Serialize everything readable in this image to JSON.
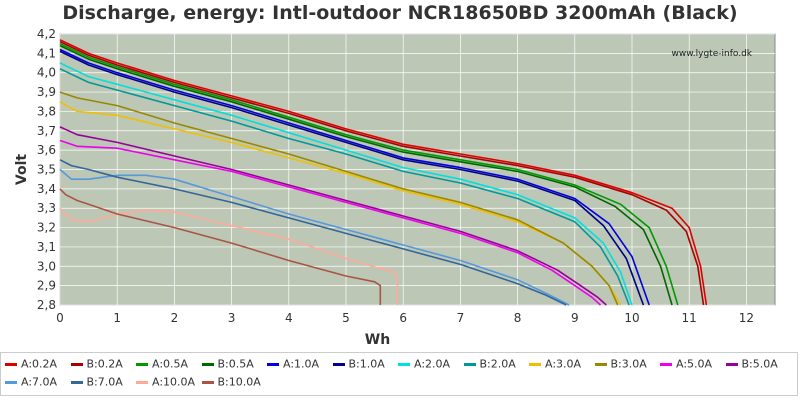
{
  "chart_data": {
    "type": "line",
    "title": "Discharge, energy: Intl-outdoor NCR18650BD 3200mAh (Black)",
    "xlabel": "Wh",
    "ylabel": "Volt",
    "xlim": [
      0,
      12.5
    ],
    "ylim": [
      2.8,
      4.2
    ],
    "xticks": [
      "0",
      "1",
      "2",
      "3",
      "4",
      "5",
      "6",
      "7",
      "8",
      "9",
      "10",
      "11",
      "12"
    ],
    "yticks": [
      "2,8",
      "2,9",
      "3,0",
      "3,1",
      "3,2",
      "3,3",
      "3,4",
      "3,5",
      "3,6",
      "3,7",
      "3,8",
      "3,9",
      "4,0",
      "4,1",
      "4,2"
    ],
    "watermark": "www.lygte-info.dk",
    "grid": true,
    "legend_placement": "bottom",
    "plot_background": "#bcc7b5",
    "series": [
      {
        "name": "A:0.2A",
        "color": "#dd0000",
        "x": [
          0,
          0.5,
          1,
          2,
          3,
          4,
          5,
          6,
          7,
          8,
          9,
          10,
          10.7,
          11.0,
          11.2,
          11.3
        ],
        "y": [
          4.17,
          4.1,
          4.05,
          3.96,
          3.88,
          3.8,
          3.71,
          3.63,
          3.58,
          3.53,
          3.47,
          3.38,
          3.3,
          3.2,
          3.0,
          2.8
        ]
      },
      {
        "name": "B:0.2A",
        "color": "#aa0000",
        "x": [
          0,
          0.5,
          1,
          2,
          3,
          4,
          5,
          6,
          7,
          8,
          9,
          10,
          10.6,
          10.95,
          11.15,
          11.25
        ],
        "y": [
          4.16,
          4.09,
          4.04,
          3.95,
          3.87,
          3.79,
          3.7,
          3.62,
          3.57,
          3.52,
          3.46,
          3.37,
          3.29,
          3.18,
          3.0,
          2.8
        ]
      },
      {
        "name": "A:0.5A",
        "color": "#009900",
        "x": [
          0,
          0.5,
          1,
          2,
          3,
          4,
          5,
          6,
          7,
          8,
          9,
          9.8,
          10.3,
          10.6,
          10.8
        ],
        "y": [
          4.15,
          4.08,
          4.03,
          3.94,
          3.86,
          3.77,
          3.68,
          3.6,
          3.55,
          3.5,
          3.42,
          3.32,
          3.2,
          3.0,
          2.8
        ]
      },
      {
        "name": "B:0.5A",
        "color": "#006600",
        "x": [
          0,
          0.5,
          1,
          2,
          3,
          4,
          5,
          6,
          7,
          8,
          9,
          9.7,
          10.2,
          10.5,
          10.7
        ],
        "y": [
          4.14,
          4.07,
          4.02,
          3.93,
          3.85,
          3.76,
          3.67,
          3.59,
          3.54,
          3.49,
          3.41,
          3.31,
          3.19,
          3.0,
          2.8
        ]
      },
      {
        "name": "A:1.0A",
        "color": "#0000dd",
        "x": [
          0,
          0.5,
          1,
          2,
          3,
          4,
          5,
          6,
          7,
          8,
          9,
          9.6,
          10.0,
          10.3
        ],
        "y": [
          4.12,
          4.05,
          4.0,
          3.91,
          3.83,
          3.74,
          3.65,
          3.56,
          3.51,
          3.45,
          3.35,
          3.22,
          3.05,
          2.8
        ]
      },
      {
        "name": "B:1.0A",
        "color": "#000088",
        "x": [
          0,
          0.5,
          1,
          2,
          3,
          4,
          5,
          6,
          7,
          8,
          9,
          9.5,
          9.9,
          10.2
        ],
        "y": [
          4.11,
          4.04,
          3.99,
          3.9,
          3.82,
          3.73,
          3.64,
          3.55,
          3.5,
          3.44,
          3.34,
          3.21,
          3.04,
          2.8
        ]
      },
      {
        "name": "A:2.0A",
        "color": "#00e0e0",
        "x": [
          0,
          0.5,
          1,
          2,
          3,
          4,
          5,
          6,
          7,
          8,
          9,
          9.5,
          9.8,
          10.0
        ],
        "y": [
          4.05,
          3.98,
          3.94,
          3.86,
          3.78,
          3.69,
          3.6,
          3.51,
          3.45,
          3.37,
          3.25,
          3.12,
          2.97,
          2.8
        ]
      },
      {
        "name": "B:2.0A",
        "color": "#009999",
        "x": [
          0,
          0.5,
          1,
          2,
          3,
          4,
          5,
          6,
          7,
          8,
          9,
          9.45,
          9.75,
          9.95
        ],
        "y": [
          4.02,
          3.95,
          3.91,
          3.83,
          3.75,
          3.66,
          3.58,
          3.49,
          3.43,
          3.35,
          3.23,
          3.1,
          2.95,
          2.8
        ]
      },
      {
        "name": "A:3.0A",
        "color": "#f0c000",
        "x": [
          0,
          0.3,
          1,
          2,
          3,
          4,
          5,
          6,
          7,
          8,
          8.8,
          9.3,
          9.6,
          9.8
        ],
        "y": [
          3.85,
          3.8,
          3.78,
          3.71,
          3.64,
          3.56,
          3.48,
          3.39,
          3.32,
          3.23,
          3.12,
          3.0,
          2.9,
          2.8
        ]
      },
      {
        "name": "B:3.0A",
        "color": "#998800",
        "x": [
          0,
          0.3,
          1,
          2,
          3,
          4,
          5,
          6,
          7,
          8,
          8.8,
          9.3,
          9.6,
          9.75
        ],
        "y": [
          3.9,
          3.87,
          3.83,
          3.74,
          3.66,
          3.58,
          3.49,
          3.4,
          3.33,
          3.24,
          3.12,
          3.0,
          2.9,
          2.8
        ]
      },
      {
        "name": "A:5.0A",
        "color": "#ee00ee",
        "x": [
          0,
          0.3,
          1,
          2,
          3,
          4,
          5,
          6,
          7,
          8,
          8.6,
          9.0,
          9.3,
          9.45
        ],
        "y": [
          3.65,
          3.62,
          3.61,
          3.55,
          3.49,
          3.41,
          3.33,
          3.25,
          3.17,
          3.07,
          2.98,
          2.9,
          2.84,
          2.8
        ]
      },
      {
        "name": "B:5.0A",
        "color": "#990099",
        "x": [
          0,
          0.3,
          1,
          2,
          3,
          4,
          5,
          6,
          7,
          8,
          8.7,
          9.1,
          9.4,
          9.55
        ],
        "y": [
          3.72,
          3.68,
          3.64,
          3.57,
          3.5,
          3.42,
          3.34,
          3.26,
          3.18,
          3.08,
          2.98,
          2.9,
          2.84,
          2.8
        ]
      },
      {
        "name": "A:7.0A",
        "color": "#5599dd",
        "x": [
          0,
          0.2,
          0.5,
          1,
          1.5,
          2,
          3,
          4,
          5,
          6,
          7,
          8,
          8.5,
          8.9
        ],
        "y": [
          3.5,
          3.45,
          3.45,
          3.47,
          3.47,
          3.45,
          3.36,
          3.27,
          3.19,
          3.11,
          3.03,
          2.93,
          2.86,
          2.8
        ]
      },
      {
        "name": "B:7.0A",
        "color": "#336699",
        "x": [
          0,
          0.2,
          0.5,
          1,
          2,
          3,
          4,
          5,
          6,
          7,
          8,
          8.5,
          8.85
        ],
        "y": [
          3.55,
          3.52,
          3.5,
          3.46,
          3.4,
          3.33,
          3.25,
          3.17,
          3.09,
          3.01,
          2.91,
          2.85,
          2.8
        ]
      },
      {
        "name": "A:10.0A",
        "color": "#ffaa99",
        "x": [
          0,
          0.2,
          0.5,
          1,
          1.5,
          2,
          3,
          4,
          5,
          5.7,
          5.85,
          5.9,
          5.9
        ],
        "y": [
          3.3,
          3.24,
          3.23,
          3.27,
          3.29,
          3.28,
          3.21,
          3.14,
          3.04,
          2.98,
          2.97,
          2.93,
          2.8
        ]
      },
      {
        "name": "B:10.0A",
        "color": "#aa5544",
        "x": [
          0,
          0.1,
          0.3,
          0.5,
          1,
          2,
          3,
          4,
          5,
          5.5,
          5.6,
          5.6
        ],
        "y": [
          3.4,
          3.37,
          3.34,
          3.32,
          3.27,
          3.2,
          3.12,
          3.03,
          2.95,
          2.92,
          2.9,
          2.8
        ]
      }
    ]
  }
}
